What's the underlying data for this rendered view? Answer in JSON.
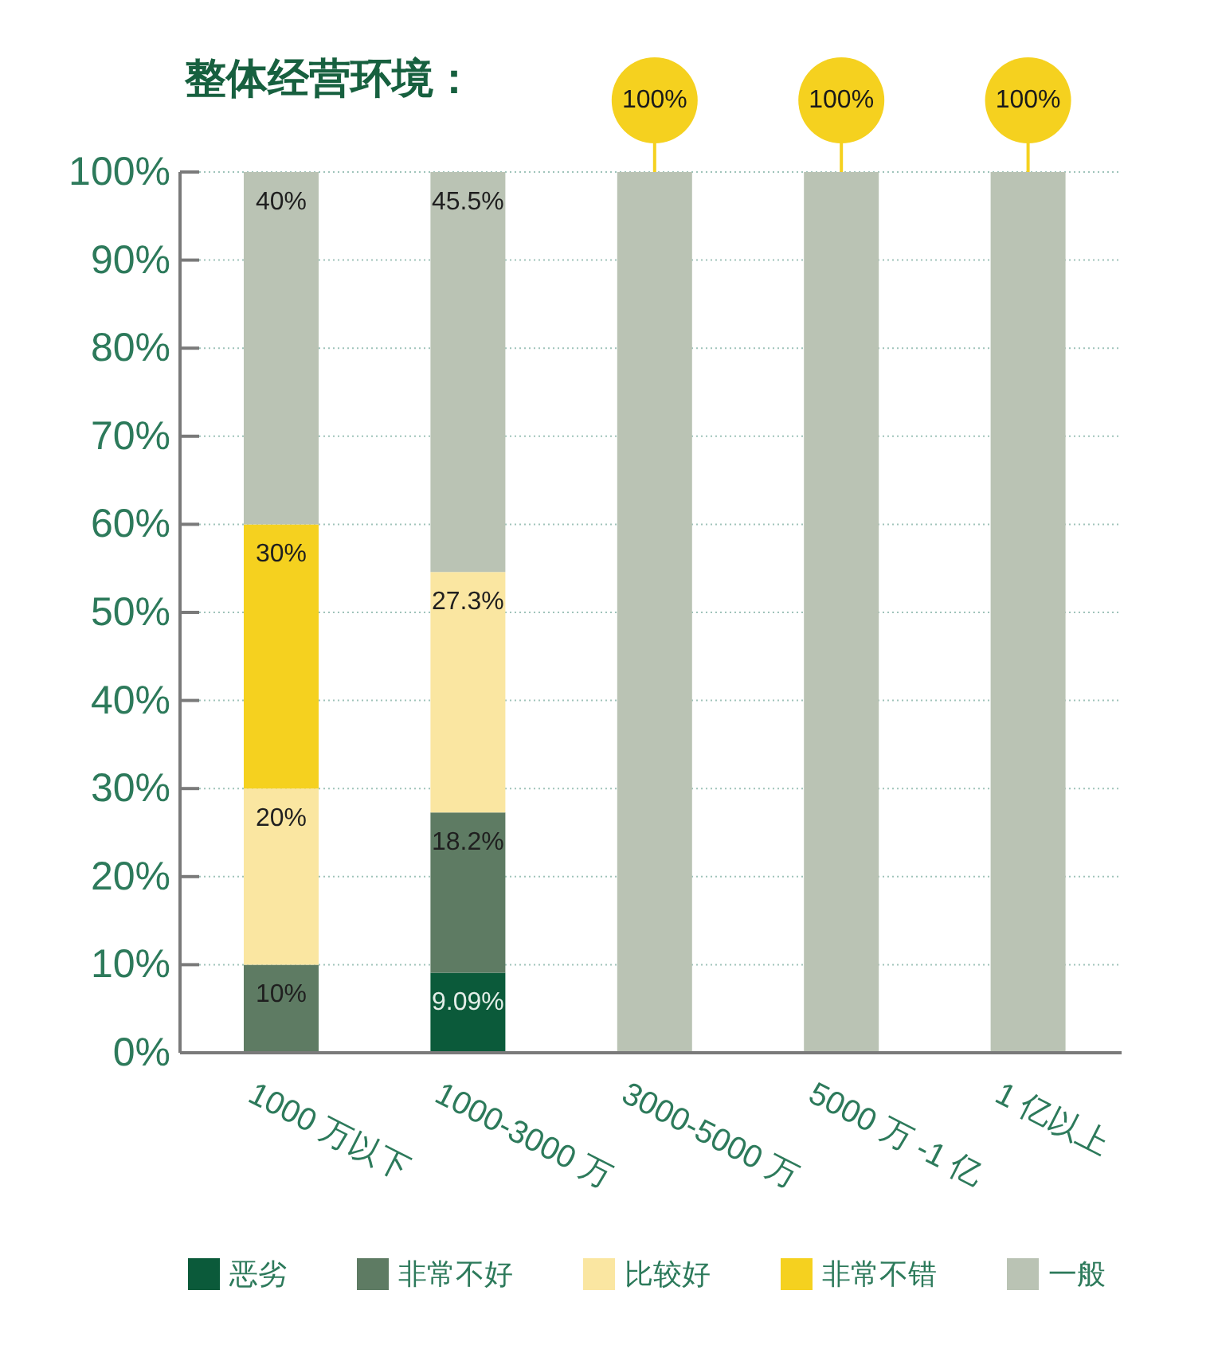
{
  "chart_data": {
    "type": "bar",
    "title": "整体经营环境：",
    "categories": [
      "1000 万以下",
      "1000-3000 万",
      "3000-5000 万",
      "5000 万 -1 亿",
      "1 亿以上"
    ],
    "stacked": true,
    "ylim": [
      0,
      100
    ],
    "yticks": [
      {
        "value": 0,
        "label": "0%"
      },
      {
        "value": 10,
        "label": "10%"
      },
      {
        "value": 20,
        "label": "20%"
      },
      {
        "value": 30,
        "label": "30%"
      },
      {
        "value": 40,
        "label": "40%"
      },
      {
        "value": 50,
        "label": "50%"
      },
      {
        "value": 60,
        "label": "60%"
      },
      {
        "value": 70,
        "label": "70%"
      },
      {
        "value": 80,
        "label": "80%"
      },
      {
        "value": 90,
        "label": "90%"
      },
      {
        "value": 100,
        "label": "100%"
      }
    ],
    "grid": "y",
    "legend": "bottom",
    "series": [
      {
        "name": "恶劣",
        "color": "#0b5a3a",
        "values": [
          0,
          9.09,
          0,
          0,
          0
        ],
        "value_labels": [
          null,
          "9.09%",
          null,
          null,
          null
        ]
      },
      {
        "name": "非常不好",
        "color": "#5e7b63",
        "values": [
          10,
          18.2,
          0,
          0,
          0
        ],
        "value_labels": [
          "10%",
          "18.2%",
          null,
          null,
          null
        ]
      },
      {
        "name": "比较好",
        "color": "#fae6a1",
        "values": [
          20,
          27.3,
          0,
          0,
          0
        ],
        "value_labels": [
          "20%",
          "27.3%",
          null,
          null,
          null
        ]
      },
      {
        "name": "非常不错",
        "color": "#f5d11f",
        "values": [
          30,
          0,
          0,
          0,
          0
        ],
        "value_labels": [
          "30%",
          null,
          null,
          null,
          null
        ]
      },
      {
        "name": "一般",
        "color": "#bac3b4",
        "values": [
          40,
          45.5,
          100,
          100,
          100
        ],
        "value_labels": [
          "40%",
          "45.5%",
          "100%",
          "100%",
          "100%"
        ]
      }
    ]
  }
}
